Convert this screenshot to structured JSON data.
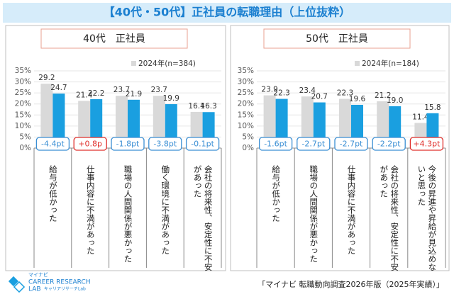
{
  "title": "【40代・50代】正社員の転職理由（上位抜粋）",
  "chart_data": [
    {
      "type": "bar",
      "title": "40代　正社員",
      "categories": [
        "給与が低かった",
        "仕事内容に不満があった",
        "職場の人間関係が悪かった",
        "働く環境に不満があった",
        "会社の将来性、安定性に不安があった"
      ],
      "series": [
        {
          "name": "2024年(n=384)",
          "color": "#d9d9d9",
          "values": [
            29.2,
            21.4,
            23.7,
            23.7,
            16.4
          ]
        },
        {
          "color": "#1a9fe0",
          "values": [
            24.7,
            22.2,
            21.9,
            19.9,
            16.3
          ]
        }
      ],
      "annotations": [
        {
          "text": "-4.4pt",
          "color": "#3b8fd4"
        },
        {
          "text": "+0.8p",
          "color": "#e0302c"
        },
        {
          "text": "-1.8pt",
          "color": "#3b8fd4"
        },
        {
          "text": "-3.8pt",
          "color": "#3b8fd4"
        },
        {
          "text": "-0.1pt",
          "color": "#3b8fd4"
        }
      ],
      "ylim": [
        0,
        35
      ],
      "yticks": [
        {
          "value": 0,
          "label": "0%"
        },
        {
          "value": 5,
          "label": "5%"
        },
        {
          "value": 10,
          "label": "10%"
        },
        {
          "value": 15,
          "label": "15%"
        },
        {
          "value": 20,
          "label": "20%"
        },
        {
          "value": 25,
          "label": "25%"
        },
        {
          "value": 30,
          "label": "30%"
        },
        {
          "value": 35,
          "label": "35%"
        }
      ],
      "grid": true
    },
    {
      "type": "bar",
      "title": "50代　正社員",
      "categories": [
        "給与が低かった",
        "職場の人間関係が悪かった",
        "仕事内容に不満があった",
        "会社の将来性、安定性に不安があった",
        "今後の昇進や昇給が見込めないと思った"
      ],
      "series": [
        {
          "name": "2024年(n=184)",
          "color": "#d9d9d9",
          "values": [
            23.9,
            23.4,
            22.3,
            21.2,
            11.4
          ]
        },
        {
          "color": "#1a9fe0",
          "values": [
            22.3,
            20.7,
            19.6,
            19.0,
            15.8
          ],
          "value_labels": [
            "22.3",
            "20.7",
            "19.6",
            "19.0",
            "15.8"
          ]
        }
      ],
      "annotations": [
        {
          "text": "-1.6pt",
          "color": "#3b8fd4"
        },
        {
          "text": "-2.7pt",
          "color": "#3b8fd4"
        },
        {
          "text": "-2.7pt",
          "color": "#3b8fd4"
        },
        {
          "text": "-2.2pt",
          "color": "#3b8fd4"
        },
        {
          "text": "+4.3pt",
          "color": "#e0302c"
        }
      ],
      "ylim": [
        0,
        35
      ],
      "yticks": [
        {
          "value": 0,
          "label": "0%"
        },
        {
          "value": 5,
          "label": "5%"
        },
        {
          "value": 10,
          "label": "10%"
        },
        {
          "value": 15,
          "label": "15%"
        },
        {
          "value": 20,
          "label": "20%"
        },
        {
          "value": 25,
          "label": "25%"
        },
        {
          "value": 30,
          "label": "30%"
        },
        {
          "value": 35,
          "label": "35%"
        }
      ],
      "grid": true
    }
  ],
  "logo": {
    "brand": "マイナビ",
    "line1": "CAREER RESEARCH",
    "line2": "LAB",
    "line3": "キャリアリサーチLab"
  },
  "source": "「マイナビ 転職動向調査2026年版（2025年実績）」"
}
